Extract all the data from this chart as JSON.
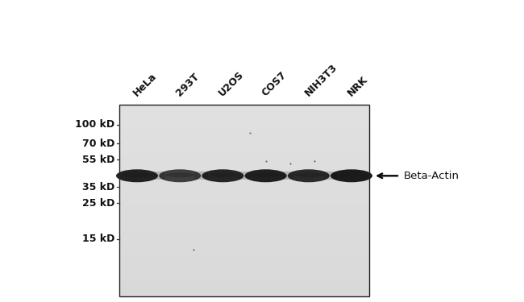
{
  "background_color": "#ffffff",
  "blot_bg_light": 0.88,
  "blot_bg_dark": 0.82,
  "blot_border_color": "#222222",
  "lane_labels": [
    "HeLa",
    "293T",
    "U2OS",
    "COS7",
    "NIH3T3",
    "NRK"
  ],
  "band_color": "#111111",
  "band_intensity": [
    0.92,
    0.78,
    0.9,
    0.93,
    0.88,
    0.95
  ],
  "mw_markers": [
    "100 kD",
    "70 kD",
    "55 kD",
    "35 kD",
    "25 kD",
    "15 kD"
  ],
  "mw_values_log": [
    100,
    70,
    55,
    35,
    25,
    15
  ],
  "annotation_text": "Beta-Actin",
  "arrow_color": "#111111",
  "tick_color": "#333333",
  "label_fontsize": 9,
  "mw_fontsize": 9,
  "band_target_kd": 42
}
